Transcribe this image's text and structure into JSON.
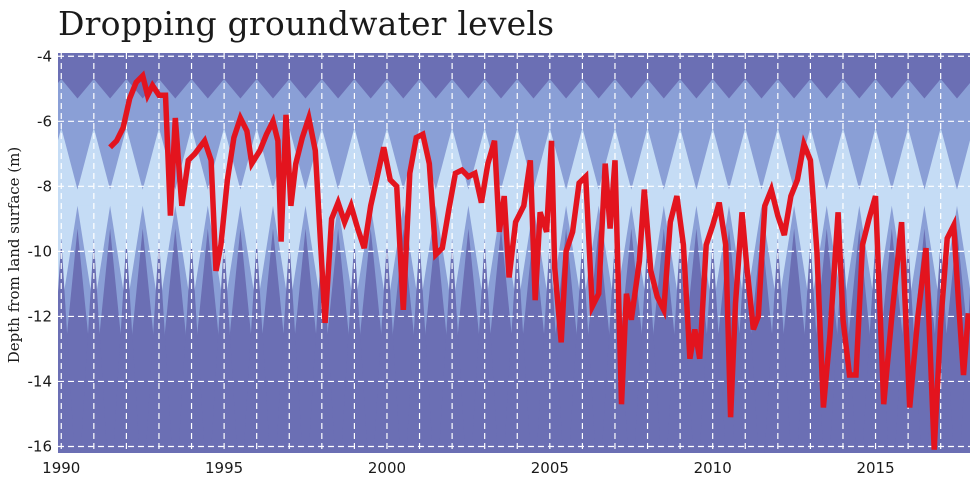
{
  "chart_data": {
    "type": "line",
    "title": "Dropping groundwater levels",
    "xlabel": "",
    "ylabel": "Depth from land surface (m)",
    "xlim": [
      1989.9,
      2017.9
    ],
    "ylim": [
      -16.2,
      -3.9
    ],
    "x_ticks": [
      1990,
      1995,
      2000,
      2005,
      2010,
      2015
    ],
    "y_ticks": [
      -4,
      -6,
      -8,
      -10,
      -12,
      -14,
      -16
    ],
    "grid": true,
    "legend": "none",
    "background": "seasonal depth bands (light blue to dark blue)",
    "colors": {
      "line": "#e3141e",
      "band_dark": "#6b6fb4",
      "band_mid": "#8a9fd6",
      "band_light": "#c5dcf5",
      "grid": "#ffffff"
    },
    "series": [
      {
        "values": [
          [
            1991.5,
            -6.8
          ],
          [
            1991.7,
            -6.6
          ],
          [
            1991.9,
            -6.2
          ],
          [
            1992.1,
            -5.3
          ],
          [
            1992.3,
            -4.8
          ],
          [
            1992.5,
            -4.6
          ],
          [
            1992.65,
            -5.2
          ],
          [
            1992.8,
            -4.9
          ],
          [
            1993.0,
            -5.2
          ],
          [
            1993.2,
            -5.2
          ],
          [
            1993.35,
            -8.9
          ],
          [
            1993.5,
            -5.9
          ],
          [
            1993.7,
            -8.6
          ],
          [
            1993.9,
            -7.2
          ],
          [
            1994.1,
            -7.0
          ],
          [
            1994.4,
            -6.6
          ],
          [
            1994.6,
            -7.2
          ],
          [
            1994.75,
            -10.6
          ],
          [
            1994.9,
            -9.8
          ],
          [
            1995.1,
            -7.8
          ],
          [
            1995.3,
            -6.5
          ],
          [
            1995.5,
            -5.9
          ],
          [
            1995.7,
            -6.3
          ],
          [
            1995.85,
            -7.3
          ],
          [
            1996.1,
            -6.9
          ],
          [
            1996.3,
            -6.4
          ],
          [
            1996.5,
            -6.0
          ],
          [
            1996.65,
            -6.6
          ],
          [
            1996.75,
            -9.7
          ],
          [
            1996.9,
            -5.8
          ],
          [
            1997.05,
            -8.6
          ],
          [
            1997.2,
            -7.3
          ],
          [
            1997.4,
            -6.5
          ],
          [
            1997.6,
            -5.9
          ],
          [
            1997.8,
            -6.9
          ],
          [
            1998.1,
            -12.2
          ],
          [
            1998.3,
            -9.0
          ],
          [
            1998.5,
            -8.5
          ],
          [
            1998.7,
            -9.1
          ],
          [
            1998.9,
            -8.6
          ],
          [
            1999.1,
            -9.3
          ],
          [
            1999.3,
            -9.9
          ],
          [
            1999.5,
            -8.6
          ],
          [
            1999.7,
            -7.7
          ],
          [
            1999.9,
            -6.8
          ],
          [
            2000.1,
            -7.8
          ],
          [
            2000.3,
            -8.0
          ],
          [
            2000.5,
            -11.8
          ],
          [
            2000.7,
            -7.6
          ],
          [
            2000.9,
            -6.5
          ],
          [
            2001.1,
            -6.4
          ],
          [
            2001.3,
            -7.3
          ],
          [
            2001.5,
            -10.1
          ],
          [
            2001.7,
            -9.9
          ],
          [
            2001.9,
            -8.7
          ],
          [
            2002.1,
            -7.6
          ],
          [
            2002.3,
            -7.5
          ],
          [
            2002.5,
            -7.7
          ],
          [
            2002.7,
            -7.6
          ],
          [
            2002.9,
            -8.5
          ],
          [
            2003.1,
            -7.3
          ],
          [
            2003.3,
            -6.6
          ],
          [
            2003.45,
            -9.4
          ],
          [
            2003.6,
            -8.3
          ],
          [
            2003.75,
            -10.8
          ],
          [
            2003.95,
            -9.1
          ],
          [
            2004.2,
            -8.6
          ],
          [
            2004.4,
            -7.2
          ],
          [
            2004.55,
            -11.5
          ],
          [
            2004.7,
            -8.8
          ],
          [
            2004.9,
            -9.4
          ],
          [
            2005.05,
            -6.6
          ],
          [
            2005.15,
            -10.5
          ],
          [
            2005.35,
            -12.8
          ],
          [
            2005.5,
            -10.0
          ],
          [
            2005.7,
            -9.4
          ],
          [
            2005.9,
            -7.9
          ],
          [
            2006.1,
            -7.7
          ],
          [
            2006.3,
            -11.7
          ],
          [
            2006.5,
            -11.3
          ],
          [
            2006.7,
            -7.3
          ],
          [
            2006.85,
            -9.3
          ],
          [
            2007.0,
            -7.2
          ],
          [
            2007.2,
            -14.7
          ],
          [
            2007.35,
            -11.3
          ],
          [
            2007.5,
            -12.1
          ],
          [
            2007.75,
            -10.3
          ],
          [
            2007.9,
            -8.1
          ],
          [
            2008.1,
            -10.6
          ],
          [
            2008.3,
            -11.4
          ],
          [
            2008.5,
            -11.8
          ],
          [
            2008.7,
            -9.1
          ],
          [
            2008.9,
            -8.3
          ],
          [
            2009.1,
            -9.8
          ],
          [
            2009.3,
            -13.3
          ],
          [
            2009.45,
            -12.4
          ],
          [
            2009.6,
            -13.3
          ],
          [
            2009.8,
            -9.8
          ],
          [
            2010.0,
            -9.2
          ],
          [
            2010.2,
            -8.5
          ],
          [
            2010.4,
            -9.8
          ],
          [
            2010.55,
            -15.1
          ],
          [
            2010.7,
            -11.6
          ],
          [
            2010.9,
            -8.8
          ],
          [
            2011.05,
            -10.5
          ],
          [
            2011.25,
            -12.4
          ],
          [
            2011.4,
            -12.0
          ],
          [
            2011.6,
            -8.6
          ],
          [
            2011.8,
            -8.1
          ],
          [
            2012.0,
            -8.9
          ],
          [
            2012.2,
            -9.5
          ],
          [
            2012.4,
            -8.3
          ],
          [
            2012.6,
            -7.8
          ],
          [
            2012.8,
            -6.7
          ],
          [
            2013.0,
            -7.2
          ],
          [
            2013.2,
            -10.0
          ],
          [
            2013.4,
            -14.8
          ],
          [
            2013.6,
            -12.6
          ],
          [
            2013.85,
            -8.8
          ],
          [
            2014.0,
            -12.1
          ],
          [
            2014.2,
            -13.8
          ],
          [
            2014.4,
            -13.8
          ],
          [
            2014.6,
            -9.8
          ],
          [
            2014.8,
            -9.0
          ],
          [
            2015.0,
            -8.3
          ],
          [
            2015.25,
            -14.7
          ],
          [
            2015.5,
            -12.0
          ],
          [
            2015.8,
            -9.1
          ],
          [
            2016.05,
            -14.8
          ],
          [
            2016.3,
            -12.0
          ],
          [
            2016.55,
            -9.9
          ],
          [
            2016.8,
            -16.1
          ],
          [
            2017.0,
            -12.2
          ],
          [
            2017.2,
            -9.6
          ],
          [
            2017.4,
            -9.2
          ],
          [
            2017.55,
            -11.6
          ],
          [
            2017.7,
            -13.8
          ],
          [
            2017.85,
            -11.9
          ]
        ]
      }
    ]
  }
}
